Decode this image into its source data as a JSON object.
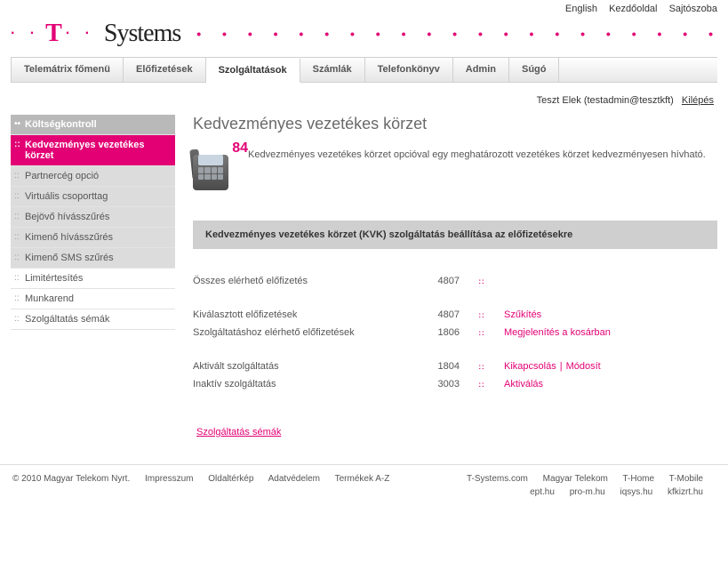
{
  "top_links": {
    "english": "English",
    "home": "Kezdőoldal",
    "press": "Sajtószoba"
  },
  "logo": {
    "brand": "T",
    "name": "Systems"
  },
  "tabs": [
    {
      "label": "Telemátrix főmenü"
    },
    {
      "label": "Előfizetések"
    },
    {
      "label": "Szolgáltatások",
      "active": true
    },
    {
      "label": "Számlák"
    },
    {
      "label": "Telefonkönyv"
    },
    {
      "label": "Admin"
    },
    {
      "label": "Súgó"
    }
  ],
  "user": {
    "name": "Teszt Elek (testadmin@tesztkft)",
    "logout": "Kilépés"
  },
  "sidebar": [
    {
      "label": "Költségkontroll",
      "style": "header"
    },
    {
      "label": "Kedvezményes vezetékes körzet",
      "style": "active"
    },
    {
      "label": "Partnercég opció",
      "style": "grey"
    },
    {
      "label": "Virtuális csoporttag",
      "style": "grey"
    },
    {
      "label": "Bejövő hívásszűrés",
      "style": "grey"
    },
    {
      "label": "Kimenő hívásszűrés",
      "style": "grey"
    },
    {
      "label": "Kimenő SMS szűrés",
      "style": "grey"
    },
    {
      "label": "Limitértesítés",
      "style": "plain"
    },
    {
      "label": "Munkarend",
      "style": "plain"
    },
    {
      "label": "Szolgáltatás sémák",
      "style": "plain"
    }
  ],
  "main": {
    "title": "Kedvezményes vezetékes körzet",
    "phone_number": "84",
    "intro": "Kedvezményes vezetékes körzet opcióval egy meghatározott vezetékes körzet kedvezményesen hívható.",
    "section_title": "Kedvezményes vezetékes körzet (KVK) szolgáltatás beállítása az előfizetésekre",
    "rows": {
      "r1": {
        "label": "Összes elérhető előfizetés",
        "value": "4807",
        "actions": []
      },
      "r2": {
        "label": "Kiválasztott előfizetések",
        "value": "4807",
        "a1": "Szűkítés"
      },
      "r3": {
        "label": "Szolgáltatáshoz elérhető előfizetések",
        "value": "1806",
        "a1": "Megjelenítés a kosárban"
      },
      "r4": {
        "label": "Aktivált szolgáltatás",
        "value": "1804",
        "a1": "Kikapcsolás",
        "a2": "Módosít"
      },
      "r5": {
        "label": "Inaktív szolgáltatás",
        "value": "3003",
        "a1": "Aktiválás"
      }
    },
    "schema_link": "Szolgáltatás sémák"
  },
  "footer": {
    "copyright": "© 2010 Magyar Telekom Nyrt.",
    "left": [
      "Impresszum",
      "Oldaltérkép",
      "Adatvédelem",
      "Termékek A-Z"
    ],
    "right1": [
      "T-Systems.com",
      "Magyar Telekom",
      "T-Home",
      "T-Mobile"
    ],
    "right2": [
      "ept.hu",
      "pro-m.hu",
      "iqsys.hu",
      "kfkizrt.hu"
    ]
  },
  "colors": {
    "magenta": "#e20074",
    "grey_bar": "#cfcfcf"
  }
}
